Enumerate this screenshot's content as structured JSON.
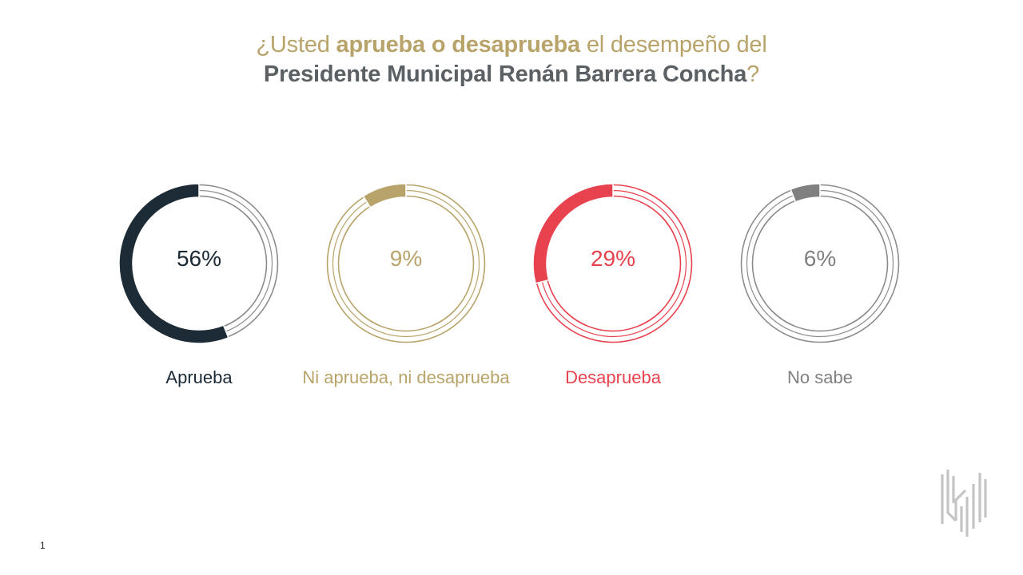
{
  "title": {
    "line1_a": "¿Usted ",
    "line1_b": "aprueba o desaprueba",
    "line1_c": " el desempeño del",
    "line2_a": "Presidente Municipal Renán Barrera Concha",
    "line2_b": "?"
  },
  "colors": {
    "gold": "#b8a46a",
    "gray_text": "#5b6065",
    "track": "#8c8c8c"
  },
  "chart_data": {
    "type": "donut",
    "title": "¿Usted aprueba o desaprueba el desempeño del Presidente Municipal Renán Barrera Concha?",
    "unit": "%",
    "categories": [
      "Aprueba",
      "Ni aprueba, ni desaprueba",
      "Desaprueba",
      "No sabe"
    ],
    "values": [
      56,
      9,
      29,
      6
    ],
    "items": [
      {
        "category": "Aprueba",
        "value": 56,
        "label": "56%",
        "color": "#1c2b36",
        "ring_color": "#8c8c8c"
      },
      {
        "category": "Ni aprueba, ni desaprueba",
        "value": 9,
        "label": "9%",
        "color": "#b8a46a",
        "ring_color": "#b8a46a"
      },
      {
        "category": "Desaprueba",
        "value": 29,
        "label": "29%",
        "color": "#e8424f",
        "ring_color": "#e8424f"
      },
      {
        "category": "No sabe",
        "value": 6,
        "label": "6%",
        "color": "#808080",
        "ring_color": "#8c8c8c"
      }
    ]
  },
  "footer": {
    "page_number": "1"
  }
}
